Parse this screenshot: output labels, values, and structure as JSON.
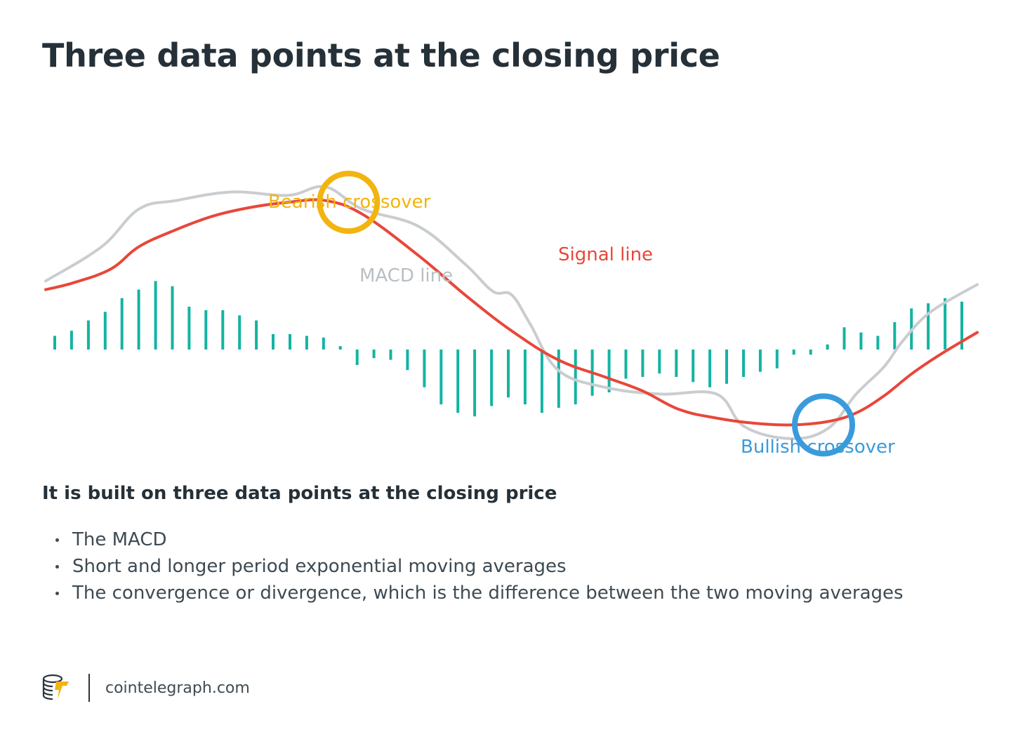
{
  "title": "Three data points at the closing price",
  "subtitle": "It is built on three data points at the closing price",
  "bullets": [
    "The MACD",
    "Short and longer period exponential moving averages",
    "The convergence or divergence, which is the difference between the two moving averages"
  ],
  "footer": {
    "logo_icon": "cointelegraph-logo-icon",
    "site": "cointelegraph.com"
  },
  "colors": {
    "macd_line": "#c9cdd0",
    "signal_line": "#e8473a",
    "histogram": "#14b3a3",
    "bearish": "#f2b410",
    "bullish": "#3a9bdc",
    "title": "#253038"
  },
  "chart_data": {
    "type": "line",
    "x_range": [
      0,
      100
    ],
    "y_range": [
      -50,
      100
    ],
    "grid": false,
    "axes_visible": false,
    "series": [
      {
        "name": "MACD line",
        "color": "#c9cdd0",
        "x": [
          0,
          6,
          10,
          14,
          20,
          26,
          30,
          34,
          40,
          45,
          48,
          50,
          52,
          55,
          60,
          66,
          72,
          75,
          80,
          84,
          87,
          90,
          92,
          95,
          100
        ],
        "y": [
          40,
          60,
          82,
          87,
          92,
          90,
          95,
          82,
          72,
          50,
          34,
          32,
          15,
          -12,
          -22,
          -26,
          -26,
          -45,
          -52,
          -46,
          -26,
          -10,
          5,
          22,
          38
        ]
      },
      {
        "name": "Signal line",
        "color": "#e8473a",
        "x": [
          0,
          3,
          7,
          10,
          14,
          18,
          22,
          26,
          30,
          34,
          40,
          45,
          50,
          55,
          60,
          64,
          68,
          72,
          76,
          80,
          84,
          87,
          90,
          93,
          96,
          100
        ],
        "y": [
          35,
          39,
          47,
          60,
          70,
          78,
          83,
          86,
          87,
          79,
          55,
          32,
          11,
          -6,
          -16,
          -24,
          -35,
          -40,
          -43,
          -44,
          -42,
          -37,
          -27,
          -14,
          -3,
          10
        ]
      }
    ],
    "histogram": {
      "name": "",
      "color": "#14b3a3",
      "values": [
        8,
        11,
        17,
        22,
        30,
        35,
        40,
        37,
        25,
        23,
        23,
        20,
        17,
        9,
        9,
        8,
        7,
        2,
        -9,
        -5,
        -6,
        -12,
        -22,
        -32,
        -37,
        -39,
        -33,
        -28,
        -32,
        -37,
        -34,
        -32,
        -27,
        -25,
        -17,
        -16,
        -14,
        -16,
        -19,
        -22,
        -20,
        -16,
        -13,
        -11,
        -3,
        -3,
        3,
        13,
        10,
        8,
        16,
        24,
        27,
        30,
        28
      ]
    },
    "annotations": [
      {
        "text": "Bearish crossover",
        "color": "#f2b410",
        "at_x": 32.5,
        "at_y": 86
      },
      {
        "text": "Bullish crossover",
        "color": "#3a9bdc",
        "at_x": 83.5,
        "at_y": -44
      },
      {
        "text": "MACD line",
        "color": "#c9cdd0",
        "at_x": 39,
        "at_y": 30
      },
      {
        "text": "Signal line",
        "color": "#e8473a",
        "at_x": 55,
        "at_y": 40
      }
    ]
  }
}
